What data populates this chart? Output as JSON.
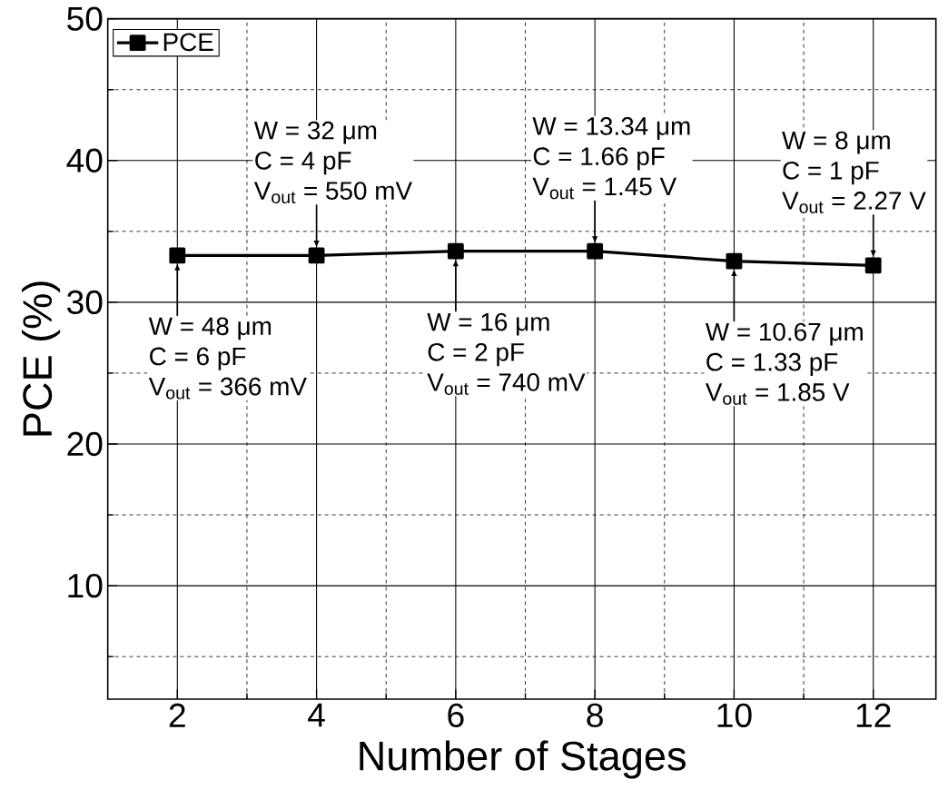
{
  "chart_data": {
    "type": "line",
    "xlabel": "Number of Stages",
    "ylabel": "PCE (%)",
    "x": [
      2,
      4,
      6,
      8,
      10,
      12
    ],
    "series": [
      {
        "name": "PCE",
        "color": "#000000",
        "values": [
          33.3,
          33.3,
          33.6,
          33.6,
          32.9,
          32.6
        ]
      }
    ],
    "xlim": [
      1,
      12.9
    ],
    "ylim": [
      2,
      50
    ],
    "xticks": [
      2,
      {
        "value": 3,
        "label": null
      },
      4,
      {
        "value": 5,
        "label": null
      },
      6,
      {
        "value": 7,
        "label": null
      },
      8,
      {
        "value": 9,
        "label": null
      },
      10,
      {
        "value": 11,
        "label": null
      },
      12
    ],
    "yticks": [
      {
        "value": 5,
        "label": null
      },
      10,
      {
        "value": 15,
        "label": null
      },
      20,
      {
        "value": 25,
        "label": null
      },
      30,
      {
        "value": 35,
        "label": null
      },
      40,
      {
        "value": 45,
        "label": null
      },
      50
    ],
    "grid": true,
    "legend": "top left",
    "marker": "square",
    "line_style": "solid",
    "annotations": [
      {
        "text": "W = 48 μm",
        "x": 2,
        "y": 33.3
      },
      "C = 6 pF",
      "V$_{out}$ = 366 mV",
      "W = 32 μm",
      "C = 4 pF",
      {
        "text": "V$_{out}$ = 550 mV",
        "x": 4,
        "y": 33.3
      },
      {
        "text": "W = 16 μm",
        "x": 6,
        "y": 33.6
      },
      "C = 2 pF",
      "V$_{out}$ = 740 mV",
      "W = 13.34 μm",
      "C = 1.66 pF",
      {
        "text": "V$_{out}$ = 1.45 V",
        "x": 8,
        "y": 33.6
      },
      {
        "text": "W = 10.67 μm",
        "x": 10,
        "y": 32.9
      },
      "C = 1.33 pF",
      "V$_{out}$ = 1.85 V",
      "W = 8 μm",
      "C = 1 pF",
      {
        "text": "V$_{out}$ = 2.27 V",
        "x": 12,
        "y": 32.6
      }
    ]
  }
}
